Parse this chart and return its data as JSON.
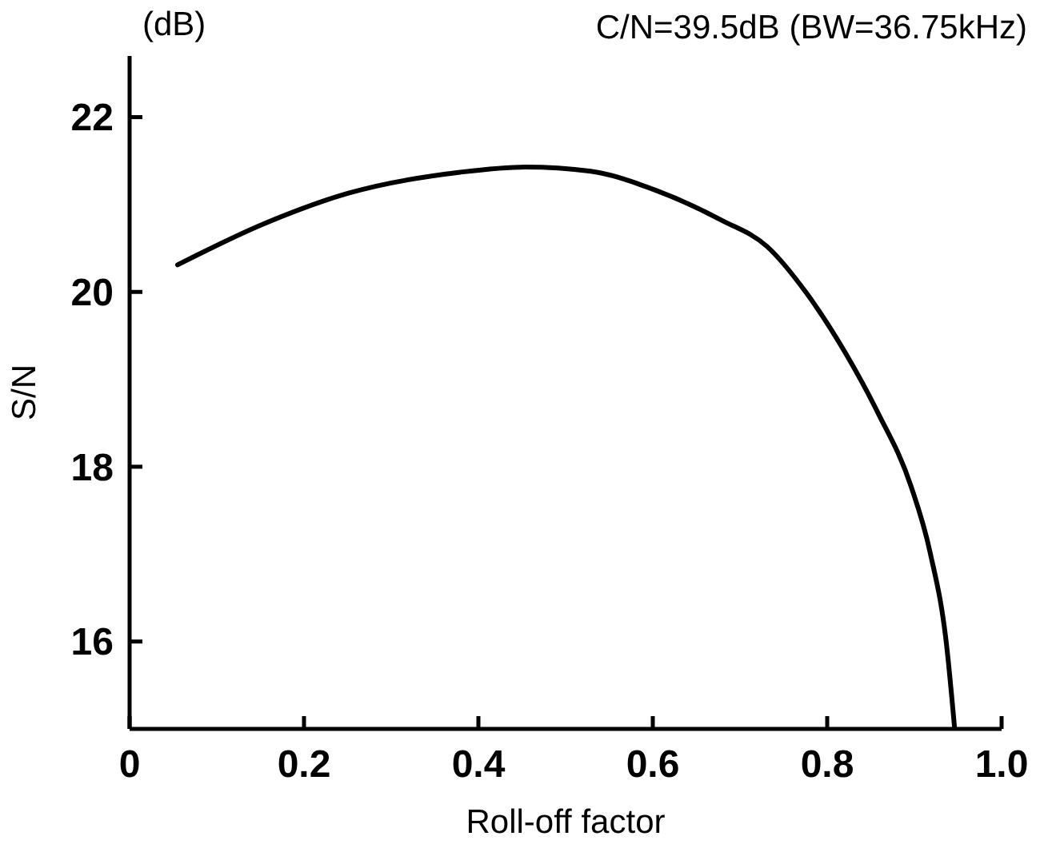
{
  "chart_data": {
    "type": "line",
    "title": "C/N=39.5dB (BW=36.75kHz)",
    "xlabel": "Roll-off factor",
    "ylabel": "S/N",
    "annotations": [
      "(dB)"
    ],
    "xlim": [
      0,
      1.0
    ],
    "xticks": [
      0,
      0.2,
      0.4,
      0.6,
      0.8,
      {
        "value": 1.0,
        "label": "1.0"
      }
    ],
    "ylim": [
      15,
      22.7
    ],
    "yticks": [
      16,
      18,
      20,
      22
    ],
    "grid": false,
    "marker": "none",
    "line_style": "solid",
    "series": [
      {
        "color": "#000000",
        "x": [
          0.055,
          0.154,
          0.251,
          0.379,
          0.454,
          0.529,
          0.604,
          0.679,
          0.731,
          0.776,
          0.821,
          0.858,
          0.896,
          0.918,
          0.937,
          0.946
        ],
        "values": [
          20.31,
          20.78,
          21.13,
          21.37,
          21.43,
          21.38,
          21.16,
          20.82,
          20.52,
          19.99,
          19.3,
          18.62,
          17.78,
          17.02,
          15.95,
          15.02
        ]
      }
    ]
  }
}
